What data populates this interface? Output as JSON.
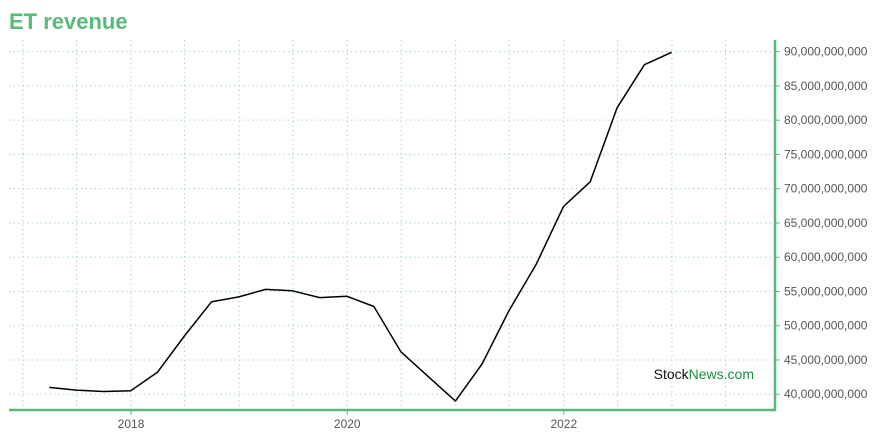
{
  "colors": {
    "accent": "#55bb77",
    "grid": "#a8d8c6",
    "line": "#000000",
    "watermark_dark": "#111111",
    "watermark_green": "#1f8f3a"
  },
  "chart_data": {
    "type": "line",
    "title": "ET revenue",
    "xlabel": "",
    "ylabel": "",
    "x_ticks": [
      "2018",
      "2020",
      "2022"
    ],
    "y_ticks": [
      40000000000,
      45000000000,
      50000000000,
      55000000000,
      60000000000,
      65000000000,
      70000000000,
      75000000000,
      80000000000,
      85000000000,
      90000000000
    ],
    "y_tick_labels": [
      "40,000,000,000",
      "45,000,000,000",
      "50,000,000,000",
      "55,000,000,000",
      "60,000,000,000",
      "65,000,000,000",
      "70,000,000,000",
      "75,000,000,000",
      "80,000,000,000",
      "85,000,000,000",
      "90,000,000,000"
    ],
    "xlim": [
      "2016-11-15",
      "2023-12-15"
    ],
    "ylim": [
      37700000000,
      91700000000
    ],
    "y_axis_side": "right",
    "grid": true,
    "series": [
      {
        "x": [
          "2017-03-31",
          "2017-06-30",
          "2017-09-30",
          "2017-12-31",
          "2018-03-31",
          "2018-06-30",
          "2018-09-30",
          "2018-12-31",
          "2019-03-31",
          "2019-06-30",
          "2019-09-30",
          "2019-12-31",
          "2020-03-31",
          "2020-06-30",
          "2020-09-30",
          "2020-12-31",
          "2021-03-31",
          "2021-06-30",
          "2021-09-30",
          "2021-12-31",
          "2022-03-31",
          "2022-06-30",
          "2022-09-30",
          "2022-12-31"
        ],
        "y": [
          41000000000,
          40600000000,
          40400000000,
          40500000000,
          43200000000,
          48500000000,
          53500000000,
          54200000000,
          55300000000,
          55100000000,
          54100000000,
          54300000000,
          52800000000,
          46200000000,
          42600000000,
          39000000000,
          44400000000,
          52200000000,
          59000000000,
          67400000000,
          71000000000,
          81800000000,
          88100000000,
          89900000000
        ]
      }
    ]
  },
  "watermark": {
    "part1": "Stock",
    "part2": "News.com"
  }
}
